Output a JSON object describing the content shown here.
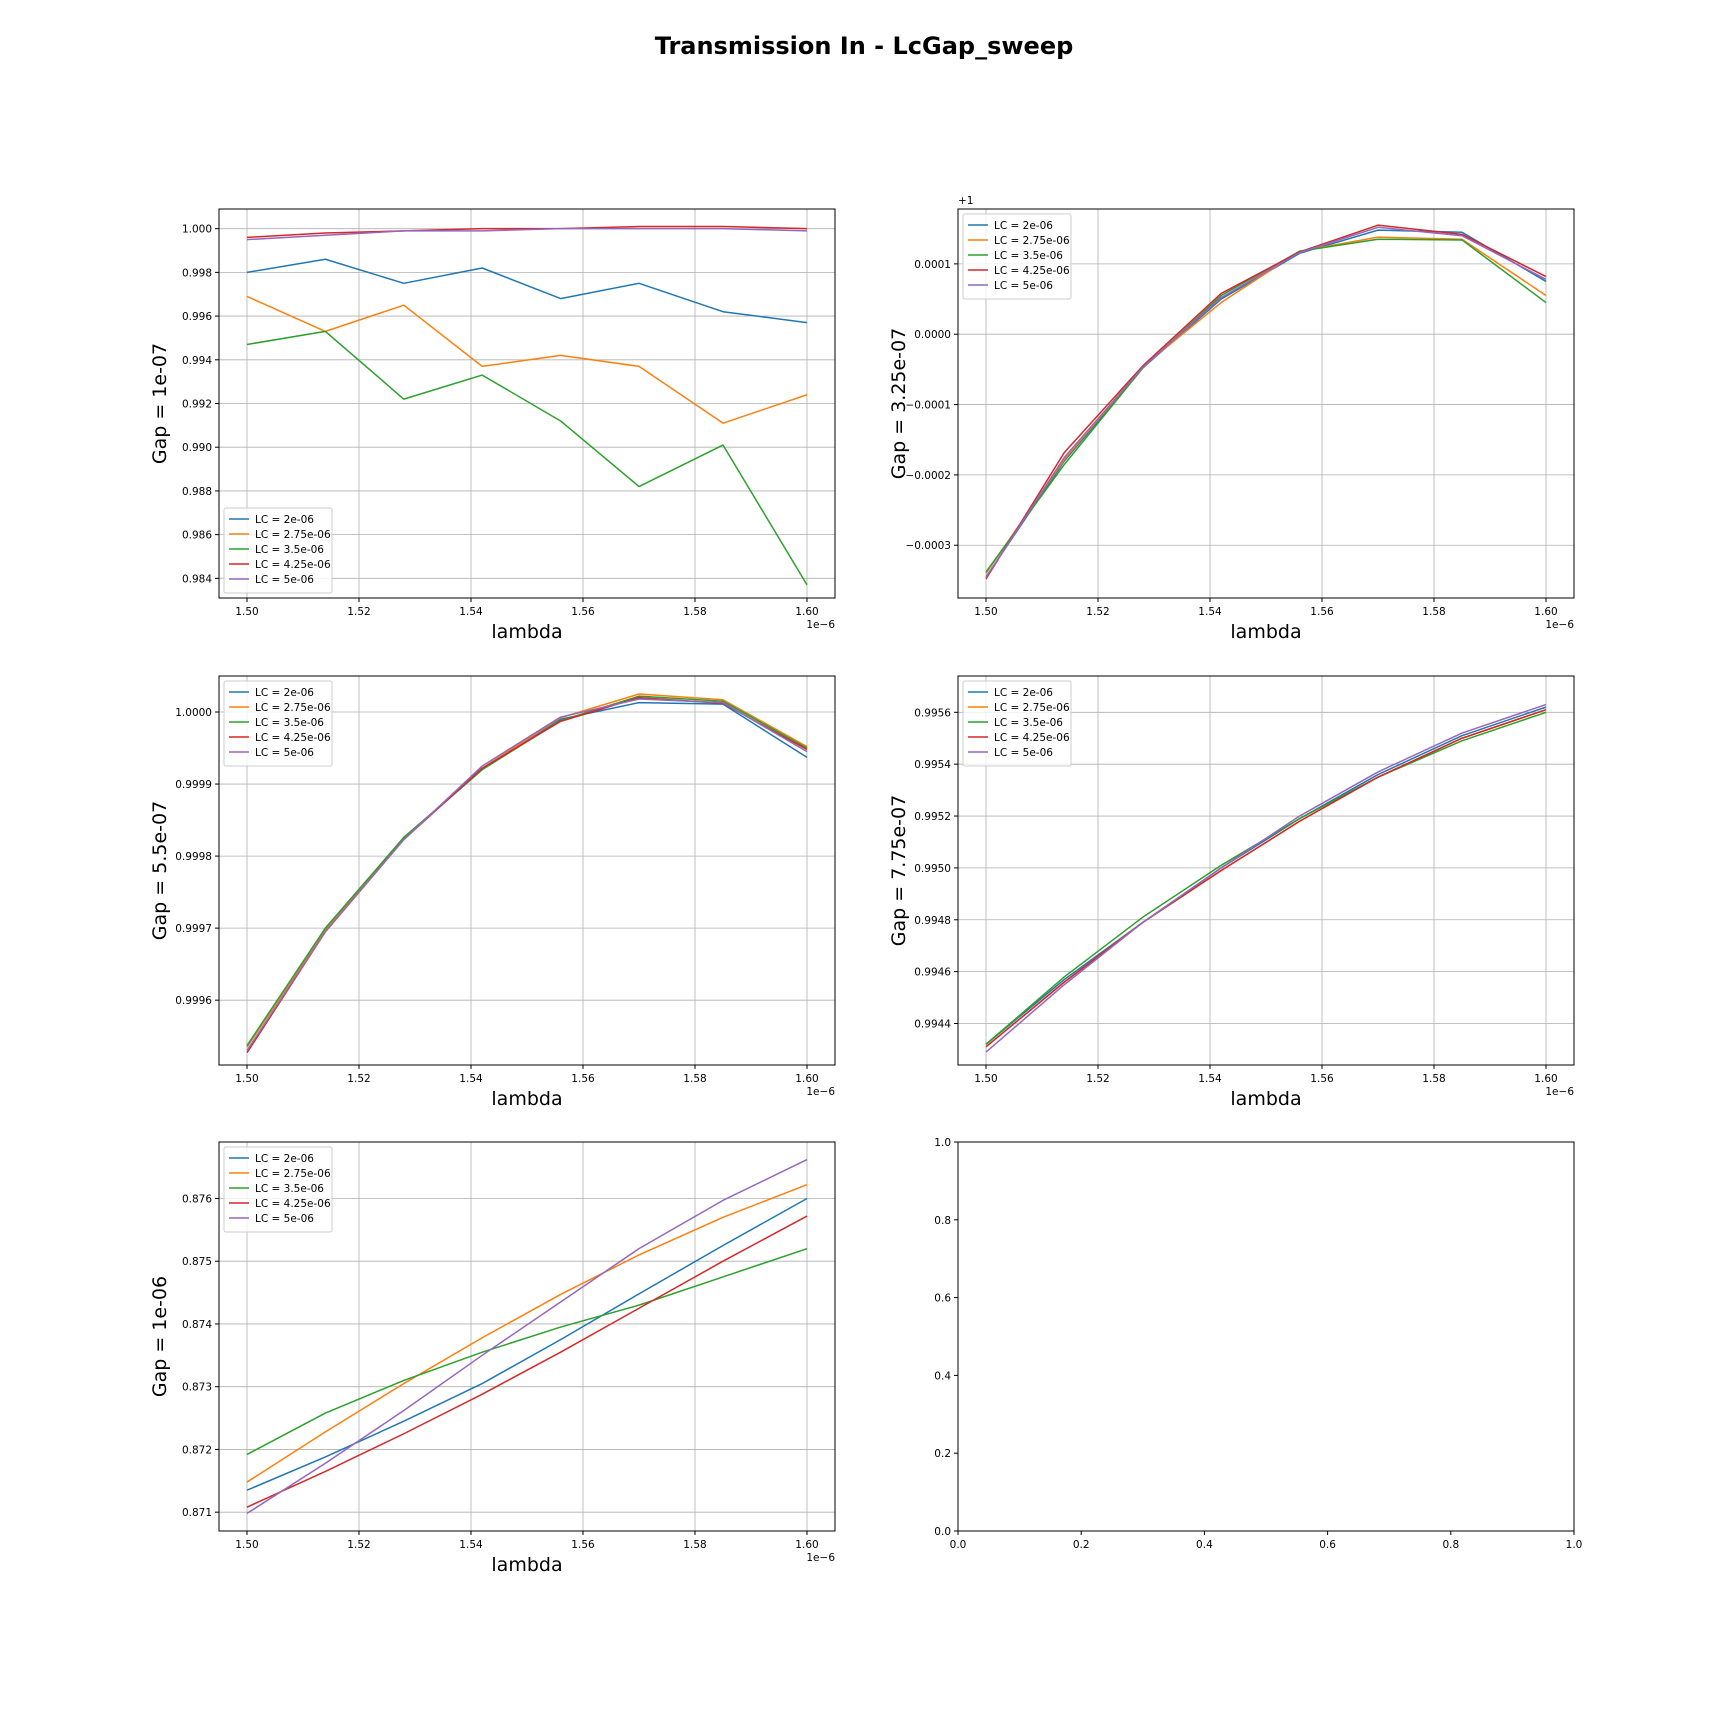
{
  "figure": {
    "title": "Transmission In - LcGap_sweep"
  },
  "legend_labels": [
    "LC = 2e-06",
    "LC = 2.75e-06",
    "LC = 3.5e-06",
    "LC = 4.25e-06",
    "LC = 5e-06"
  ],
  "colors": [
    "#1f77b4",
    "#ff7f0e",
    "#2ca02c",
    "#d62728",
    "#9467bd"
  ],
  "chart_data": [
    {
      "type": "line",
      "xlabel": "lambda",
      "ylabel": "Gap = 1e-07",
      "x_offset_label": "1e−6",
      "y_offset_label": "",
      "xlim": [
        1.495,
        1.605
      ],
      "ylim": [
        0.9831,
        1.0009
      ],
      "xticks": [
        1.5,
        1.52,
        1.54,
        1.56,
        1.58,
        1.6
      ],
      "xtick_labels": [
        "1.50",
        "1.52",
        "1.54",
        "1.56",
        "1.58",
        "1.60"
      ],
      "yticks": [
        0.984,
        0.986,
        0.988,
        0.99,
        0.992,
        0.994,
        0.996,
        0.998,
        1.0
      ],
      "ytick_labels": [
        "0.984",
        "0.986",
        "0.988",
        "0.990",
        "0.992",
        "0.994",
        "0.996",
        "0.998",
        "1.000"
      ],
      "grid": true,
      "legend_loc": "lower-left",
      "x": [
        1.5,
        1.514,
        1.528,
        1.542,
        1.556,
        1.57,
        1.585,
        1.6
      ],
      "series": [
        {
          "name": "LC = 2e-06",
          "values": [
            0.998,
            0.9986,
            0.9975,
            0.9982,
            0.9968,
            0.9975,
            0.9962,
            0.9957
          ]
        },
        {
          "name": "LC = 2.75e-06",
          "values": [
            0.9969,
            0.9953,
            0.9965,
            0.9937,
            0.9942,
            0.9937,
            0.9911,
            0.9924
          ]
        },
        {
          "name": "LC = 3.5e-06",
          "values": [
            0.9947,
            0.9953,
            0.9922,
            0.9933,
            0.9912,
            0.9882,
            0.9901,
            0.9837
          ]
        },
        {
          "name": "LC = 4.25e-06",
          "values": [
            0.9996,
            0.9998,
            0.9999,
            1.0,
            1.0,
            1.0001,
            1.0001,
            1.0
          ]
        },
        {
          "name": "LC = 5e-06",
          "values": [
            0.9995,
            0.9997,
            0.9999,
            0.9999,
            1.0,
            1.0,
            1.0,
            0.9999
          ]
        }
      ]
    },
    {
      "type": "line",
      "xlabel": "lambda",
      "ylabel": "Gap = 3.25e-07",
      "x_offset_label": "1e−6",
      "y_offset_label": "+1",
      "xlim": [
        1.495,
        1.605
      ],
      "ylim": [
        -0.000375,
        0.000178
      ],
      "xticks": [
        1.5,
        1.52,
        1.54,
        1.56,
        1.58,
        1.6
      ],
      "xtick_labels": [
        "1.50",
        "1.52",
        "1.54",
        "1.56",
        "1.58",
        "1.60"
      ],
      "yticks": [
        -0.0003,
        -0.0002,
        -0.0001,
        0.0,
        0.0001
      ],
      "ytick_labels": [
        "−0.0003",
        "−0.0002",
        "−0.0001",
        "0.0000",
        "0.0001"
      ],
      "grid": true,
      "legend_loc": "upper-left",
      "x": [
        1.5,
        1.514,
        1.528,
        1.542,
        1.556,
        1.57,
        1.585,
        1.6
      ],
      "series": [
        {
          "name": "LC = 2e-06",
          "values": [
            -0.000345,
            -0.00018,
            -4.8e-05,
            5e-05,
            0.000115,
            0.000148,
            0.000145,
            7.5e-05
          ]
        },
        {
          "name": "LC = 2.75e-06",
          "values": [
            -0.00034,
            -0.000178,
            -4.6e-05,
            4.5e-05,
            0.000118,
            0.000138,
            0.000135,
            5.5e-05
          ]
        },
        {
          "name": "LC = 3.5e-06",
          "values": [
            -0.000338,
            -0.000185,
            -4.8e-05,
            5.5e-05,
            0.000118,
            0.000135,
            0.000134,
            4.5e-05
          ]
        },
        {
          "name": "LC = 4.25e-06",
          "values": [
            -0.000348,
            -0.000168,
            -4.5e-05,
            5.8e-05,
            0.000117,
            0.000155,
            0.000142,
            8.2e-05
          ]
        },
        {
          "name": "LC = 5e-06",
          "values": [
            -0.000346,
            -0.000175,
            -4.7e-05,
            5.2e-05,
            0.000116,
            0.000152,
            0.00014,
            7.8e-05
          ]
        }
      ]
    },
    {
      "type": "line",
      "xlabel": "lambda",
      "ylabel": "Gap = 5.5e-07",
      "x_offset_label": "1e−6",
      "y_offset_label": "",
      "xlim": [
        1.495,
        1.605
      ],
      "ylim": [
        0.99951,
        1.00005
      ],
      "xticks": [
        1.5,
        1.52,
        1.54,
        1.56,
        1.58,
        1.6
      ],
      "xtick_labels": [
        "1.50",
        "1.52",
        "1.54",
        "1.56",
        "1.58",
        "1.60"
      ],
      "yticks": [
        0.9996,
        0.9997,
        0.9998,
        0.9999,
        1.0
      ],
      "ytick_labels": [
        "0.9996",
        "0.9997",
        "0.9998",
        "0.9999",
        "1.0000"
      ],
      "grid": true,
      "legend_loc": "upper-left",
      "x": [
        1.5,
        1.514,
        1.528,
        1.542,
        1.556,
        1.57,
        1.585,
        1.6
      ],
      "series": [
        {
          "name": "LC = 2e-06",
          "values": [
            0.999535,
            0.9997,
            0.999825,
            0.99992,
            0.99999,
            1.000013,
            1.000011,
            0.999937
          ]
        },
        {
          "name": "LC = 2.75e-06",
          "values": [
            0.999535,
            0.999697,
            0.999825,
            0.999922,
            0.999992,
            1.000025,
            1.000017,
            0.999952
          ]
        },
        {
          "name": "LC = 3.5e-06",
          "values": [
            0.999537,
            0.9997,
            0.999826,
            0.99992,
            0.999988,
            1.000022,
            1.000015,
            0.99995
          ]
        },
        {
          "name": "LC = 4.25e-06",
          "values": [
            0.999527,
            0.999695,
            0.999823,
            0.999922,
            0.999987,
            1.00002,
            1.000012,
            0.999948
          ]
        },
        {
          "name": "LC = 5e-06",
          "values": [
            0.99953,
            0.999695,
            0.999823,
            0.999925,
            0.999993,
            1.000018,
            1.000013,
            0.999945
          ]
        }
      ]
    },
    {
      "type": "line",
      "xlabel": "lambda",
      "ylabel": "Gap = 7.75e-07",
      "x_offset_label": "1e−6",
      "y_offset_label": "",
      "xlim": [
        1.495,
        1.605
      ],
      "ylim": [
        0.99424,
        0.99574
      ],
      "xticks": [
        1.5,
        1.52,
        1.54,
        1.56,
        1.58,
        1.6
      ],
      "xtick_labels": [
        "1.50",
        "1.52",
        "1.54",
        "1.56",
        "1.58",
        "1.60"
      ],
      "yticks": [
        0.9944,
        0.9946,
        0.9948,
        0.995,
        0.9952,
        0.9954,
        0.9956
      ],
      "ytick_labels": [
        "0.9944",
        "0.9946",
        "0.9948",
        "0.9950",
        "0.9952",
        "0.9954",
        "0.9956"
      ],
      "grid": true,
      "legend_loc": "upper-left",
      "x": [
        1.5,
        1.514,
        1.528,
        1.542,
        1.556,
        1.57,
        1.585,
        1.6
      ],
      "series": [
        {
          "name": "LC = 2e-06",
          "values": [
            0.99432,
            0.99457,
            0.99479,
            0.995,
            0.99519,
            0.99536,
            0.99551,
            0.99562
          ]
        },
        {
          "name": "LC = 2.75e-06",
          "values": [
            0.99431,
            0.99456,
            0.99479,
            0.99499,
            0.99518,
            0.99535,
            0.9955,
            0.99561
          ]
        },
        {
          "name": "LC = 3.5e-06",
          "values": [
            0.99432,
            0.99458,
            0.99481,
            0.99501,
            0.99519,
            0.99535,
            0.99549,
            0.9956
          ]
        },
        {
          "name": "LC = 4.25e-06",
          "values": [
            0.99431,
            0.99456,
            0.99479,
            0.99499,
            0.99518,
            0.99535,
            0.9955,
            0.99561
          ]
        },
        {
          "name": "LC = 5e-06",
          "values": [
            0.99429,
            0.99455,
            0.99479,
            0.995,
            0.9952,
            0.99537,
            0.99552,
            0.99563
          ]
        }
      ]
    },
    {
      "type": "line",
      "xlabel": "lambda",
      "ylabel": "Gap = 1e-06",
      "x_offset_label": "1e−6",
      "y_offset_label": "",
      "xlim": [
        1.495,
        1.605
      ],
      "ylim": [
        0.8707,
        0.8769
      ],
      "xticks": [
        1.5,
        1.52,
        1.54,
        1.56,
        1.58,
        1.6
      ],
      "xtick_labels": [
        "1.50",
        "1.52",
        "1.54",
        "1.56",
        "1.58",
        "1.60"
      ],
      "yticks": [
        0.871,
        0.872,
        0.873,
        0.874,
        0.875,
        0.876
      ],
      "ytick_labels": [
        "0.871",
        "0.872",
        "0.873",
        "0.874",
        "0.875",
        "0.876"
      ],
      "grid": true,
      "legend_loc": "upper-left",
      "x": [
        1.5,
        1.514,
        1.528,
        1.542,
        1.556,
        1.57,
        1.585,
        1.6
      ],
      "series": [
        {
          "name": "LC = 2e-06",
          "values": [
            0.87135,
            0.87188,
            0.87245,
            0.87305,
            0.87375,
            0.87448,
            0.87525,
            0.876
          ]
        },
        {
          "name": "LC = 2.75e-06",
          "values": [
            0.87148,
            0.87228,
            0.87305,
            0.87378,
            0.87447,
            0.8751,
            0.8757,
            0.87622
          ]
        },
        {
          "name": "LC = 3.5e-06",
          "values": [
            0.87192,
            0.87258,
            0.8731,
            0.87355,
            0.87395,
            0.8743,
            0.87475,
            0.8752
          ]
        },
        {
          "name": "LC = 4.25e-06",
          "values": [
            0.87108,
            0.87165,
            0.87225,
            0.87288,
            0.87355,
            0.87425,
            0.875,
            0.87572
          ]
        },
        {
          "name": "LC = 5e-06",
          "values": [
            0.87098,
            0.87178,
            0.87262,
            0.8735,
            0.87435,
            0.8752,
            0.87597,
            0.87662
          ]
        }
      ]
    },
    {
      "type": "line",
      "xlabel": "",
      "ylabel": "",
      "x_offset_label": "",
      "y_offset_label": "",
      "xlim": [
        0,
        1
      ],
      "ylim": [
        0,
        1
      ],
      "xticks": [
        0,
        0.2,
        0.4,
        0.6,
        0.8,
        1.0
      ],
      "xtick_labels": [
        "0.0",
        "0.2",
        "0.4",
        "0.6",
        "0.8",
        "1.0"
      ],
      "yticks": [
        0,
        0.2,
        0.4,
        0.6,
        0.8,
        1.0
      ],
      "ytick_labels": [
        "0.0",
        "0.2",
        "0.4",
        "0.6",
        "0.8",
        "1.0"
      ],
      "grid": false,
      "legend_loc": "none",
      "x": [],
      "series": []
    }
  ]
}
